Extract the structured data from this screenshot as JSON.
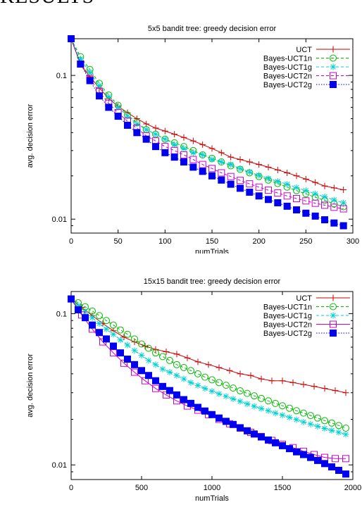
{
  "page": {
    "section_heading": "RESULTS"
  },
  "chart_data": [
    {
      "type": "line",
      "title": "5x5 bandit tree: greedy decision error",
      "xlabel": "numTrials",
      "ylabel": "avg. decision error",
      "y_scale": "log",
      "xlim": [
        0,
        300
      ],
      "ylim": [
        0.008,
        0.18
      ],
      "x_ticks": [
        0,
        50,
        100,
        150,
        200,
        250,
        300
      ],
      "y_ticks": [
        0.01,
        0.1
      ],
      "y_tick_labels": [
        "0.01",
        "0.1"
      ],
      "grid": false,
      "legend_position": "top-right",
      "series": [
        {
          "name": "UCT",
          "color": "#cc0000",
          "marker": "plus",
          "line_style": "solid",
          "x": [
            0,
            10,
            20,
            30,
            40,
            50,
            60,
            70,
            80,
            90,
            100,
            110,
            120,
            130,
            140,
            150,
            160,
            170,
            180,
            190,
            200,
            210,
            220,
            230,
            240,
            250,
            260,
            270,
            280,
            290
          ],
          "y": [
            0.18,
            0.12,
            0.098,
            0.082,
            0.069,
            0.061,
            0.055,
            0.05,
            0.046,
            0.043,
            0.041,
            0.039,
            0.037,
            0.035,
            0.033,
            0.031,
            0.029,
            0.027,
            0.026,
            0.025,
            0.024,
            0.023,
            0.022,
            0.021,
            0.02,
            0.019,
            0.018,
            0.017,
            0.0165,
            0.016
          ]
        },
        {
          "name": "Bayes-UCT1n",
          "color": "#00bb00",
          "marker": "circle",
          "line_style": "dashed",
          "x": [
            0,
            10,
            20,
            30,
            40,
            50,
            60,
            70,
            80,
            90,
            100,
            110,
            120,
            130,
            140,
            150,
            160,
            170,
            180,
            190,
            200,
            210,
            220,
            230,
            240,
            250,
            260,
            270,
            280,
            290
          ],
          "y": [
            0.18,
            0.135,
            0.11,
            0.088,
            0.073,
            0.062,
            0.053,
            0.047,
            0.042,
            0.039,
            0.036,
            0.034,
            0.032,
            0.03,
            0.028,
            0.0265,
            0.025,
            0.0235,
            0.0222,
            0.021,
            0.0198,
            0.0187,
            0.0177,
            0.0167,
            0.0158,
            0.015,
            0.0142,
            0.0135,
            0.0128,
            0.0122
          ]
        },
        {
          "name": "Bayes-UCT1g",
          "color": "#00d0d0",
          "marker": "star",
          "line_style": "dashed",
          "x": [
            0,
            10,
            20,
            30,
            40,
            50,
            60,
            70,
            80,
            90,
            100,
            110,
            120,
            130,
            140,
            150,
            160,
            170,
            180,
            190,
            200,
            210,
            220,
            230,
            240,
            250,
            260,
            270,
            280,
            290
          ],
          "y": [
            0.18,
            0.13,
            0.105,
            0.085,
            0.071,
            0.06,
            0.052,
            0.046,
            0.042,
            0.039,
            0.036,
            0.033,
            0.031,
            0.029,
            0.028,
            0.026,
            0.025,
            0.024,
            0.0225,
            0.0213,
            0.0202,
            0.0192,
            0.0183,
            0.0175,
            0.0166,
            0.0158,
            0.015,
            0.0143,
            0.0136,
            0.013
          ]
        },
        {
          "name": "Bayes-UCT2n",
          "color": "#cc00cc",
          "marker": "square",
          "line_style": "dashed",
          "x": [
            0,
            10,
            20,
            30,
            40,
            50,
            60,
            70,
            80,
            90,
            100,
            110,
            120,
            130,
            140,
            150,
            160,
            170,
            180,
            190,
            200,
            210,
            220,
            230,
            240,
            250,
            260,
            270,
            280,
            290
          ],
          "y": [
            0.18,
            0.12,
            0.095,
            0.077,
            0.064,
            0.055,
            0.048,
            0.043,
            0.038,
            0.035,
            0.032,
            0.03,
            0.028,
            0.026,
            0.024,
            0.0225,
            0.021,
            0.0198,
            0.0186,
            0.0176,
            0.0167,
            0.0159,
            0.0152,
            0.0145,
            0.0139,
            0.0134,
            0.0129,
            0.0125,
            0.0121,
            0.0118
          ]
        },
        {
          "name": "Bayes-UCT2g",
          "color": "#0000ee",
          "marker": "filled-square",
          "line_style": "dotted",
          "x": [
            0,
            10,
            20,
            30,
            40,
            50,
            60,
            70,
            80,
            90,
            100,
            110,
            120,
            130,
            140,
            150,
            160,
            170,
            180,
            190,
            200,
            210,
            220,
            230,
            240,
            250,
            260,
            270,
            280,
            290
          ],
          "y": [
            0.18,
            0.12,
            0.092,
            0.072,
            0.06,
            0.052,
            0.045,
            0.04,
            0.036,
            0.032,
            0.029,
            0.027,
            0.025,
            0.023,
            0.0215,
            0.02,
            0.0187,
            0.0175,
            0.0164,
            0.0154,
            0.0145,
            0.0137,
            0.013,
            0.0123,
            0.0116,
            0.011,
            0.0105,
            0.0099,
            0.0094,
            0.009
          ]
        }
      ]
    },
    {
      "type": "line",
      "title": "15x15 bandit tree: greedy decision error",
      "xlabel": "numTrials",
      "ylabel": "avg. decision error",
      "y_scale": "log",
      "xlim": [
        0,
        2000
      ],
      "ylim": [
        0.008,
        0.14
      ],
      "x_ticks": [
        0,
        500,
        1000,
        1500,
        2000
      ],
      "y_ticks": [
        0.01,
        0.1
      ],
      "y_tick_labels": [
        "0.01",
        "0.1"
      ],
      "grid": false,
      "legend_position": "top-right",
      "series": [
        {
          "name": "UCT",
          "color": "#cc0000",
          "marker": "plus",
          "line_style": "solid",
          "x": [
            0,
            75,
            150,
            225,
            300,
            375,
            450,
            525,
            600,
            675,
            750,
            825,
            900,
            975,
            1050,
            1125,
            1200,
            1275,
            1350,
            1425,
            1500,
            1575,
            1650,
            1725,
            1800,
            1875,
            1950
          ],
          "y": [
            0.125,
            0.11,
            0.097,
            0.086,
            0.077,
            0.07,
            0.065,
            0.061,
            0.058,
            0.056,
            0.054,
            0.051,
            0.048,
            0.046,
            0.044,
            0.042,
            0.04,
            0.039,
            0.037,
            0.036,
            0.036,
            0.035,
            0.034,
            0.033,
            0.032,
            0.031,
            0.03
          ]
        },
        {
          "name": "Bayes-UCT1n",
          "color": "#00bb00",
          "marker": "circle",
          "line_style": "dashed",
          "x": [
            0,
            50,
            100,
            150,
            200,
            250,
            300,
            350,
            400,
            450,
            500,
            550,
            600,
            650,
            700,
            750,
            800,
            850,
            900,
            950,
            1000,
            1050,
            1100,
            1150,
            1200,
            1250,
            1300,
            1350,
            1400,
            1450,
            1500,
            1550,
            1600,
            1650,
            1700,
            1750,
            1800,
            1850,
            1900,
            1950
          ],
          "y": [
            0.125,
            0.118,
            0.111,
            0.104,
            0.097,
            0.09,
            0.084,
            0.078,
            0.073,
            0.068,
            0.063,
            0.059,
            0.055,
            0.052,
            0.049,
            0.046,
            0.044,
            0.042,
            0.04,
            0.038,
            0.0365,
            0.035,
            0.0336,
            0.0322,
            0.0309,
            0.0297,
            0.0286,
            0.0275,
            0.0265,
            0.0255,
            0.0246,
            0.0237,
            0.0228,
            0.022,
            0.0212,
            0.0204,
            0.0196,
            0.0189,
            0.0182,
            0.0175
          ]
        },
        {
          "name": "Bayes-UCT1g",
          "color": "#00d0d0",
          "marker": "star",
          "line_style": "dashed",
          "x": [
            0,
            50,
            100,
            150,
            200,
            250,
            300,
            350,
            400,
            450,
            500,
            550,
            600,
            650,
            700,
            750,
            800,
            850,
            900,
            950,
            1000,
            1050,
            1100,
            1150,
            1200,
            1250,
            1300,
            1350,
            1400,
            1450,
            1500,
            1550,
            1600,
            1650,
            1700,
            1750,
            1800,
            1850,
            1900,
            1950
          ],
          "y": [
            0.125,
            0.113,
            0.103,
            0.094,
            0.086,
            0.079,
            0.073,
            0.067,
            0.062,
            0.057,
            0.053,
            0.049,
            0.046,
            0.043,
            0.041,
            0.039,
            0.037,
            0.035,
            0.0335,
            0.032,
            0.0307,
            0.0295,
            0.0284,
            0.0273,
            0.0263,
            0.0253,
            0.0244,
            0.0236,
            0.0228,
            0.022,
            0.0213,
            0.0206,
            0.0199,
            0.0192,
            0.0186,
            0.018,
            0.0174,
            0.0169,
            0.0164,
            0.0159
          ]
        },
        {
          "name": "Bayes-UCT2n",
          "color": "#cc00cc",
          "marker": "square",
          "line_style": "solid",
          "x": [
            0,
            75,
            150,
            225,
            300,
            375,
            450,
            525,
            600,
            675,
            750,
            825,
            900,
            975,
            1050,
            1125,
            1200,
            1275,
            1350,
            1425,
            1500,
            1575,
            1650,
            1725,
            1800,
            1875,
            1950
          ],
          "y": [
            0.125,
            0.098,
            0.079,
            0.065,
            0.055,
            0.047,
            0.041,
            0.036,
            0.032,
            0.029,
            0.0265,
            0.0245,
            0.023,
            0.0215,
            0.02,
            0.0187,
            0.0175,
            0.0164,
            0.0154,
            0.0145,
            0.0137,
            0.013,
            0.0123,
            0.0117,
            0.0112,
            0.011,
            0.011
          ]
        },
        {
          "name": "Bayes-UCT2g",
          "color": "#0000ee",
          "marker": "filled-square",
          "line_style": "dotted",
          "x": [
            0,
            50,
            100,
            150,
            200,
            250,
            300,
            350,
            400,
            450,
            500,
            550,
            600,
            650,
            700,
            750,
            800,
            850,
            900,
            950,
            1000,
            1050,
            1100,
            1150,
            1200,
            1250,
            1300,
            1350,
            1400,
            1450,
            1500,
            1550,
            1600,
            1650,
            1700,
            1750,
            1800,
            1850,
            1900,
            1950
          ],
          "y": [
            0.125,
            0.106,
            0.094,
            0.084,
            0.075,
            0.068,
            0.061,
            0.055,
            0.05,
            0.046,
            0.042,
            0.039,
            0.036,
            0.033,
            0.031,
            0.029,
            0.027,
            0.0255,
            0.024,
            0.0227,
            0.0215,
            0.0204,
            0.0194,
            0.0185,
            0.0176,
            0.0168,
            0.016,
            0.0153,
            0.0146,
            0.014,
            0.0134,
            0.0128,
            0.0122,
            0.0117,
            0.0112,
            0.0107,
            0.0102,
            0.0097,
            0.0092,
            0.0087
          ]
        }
      ]
    }
  ]
}
